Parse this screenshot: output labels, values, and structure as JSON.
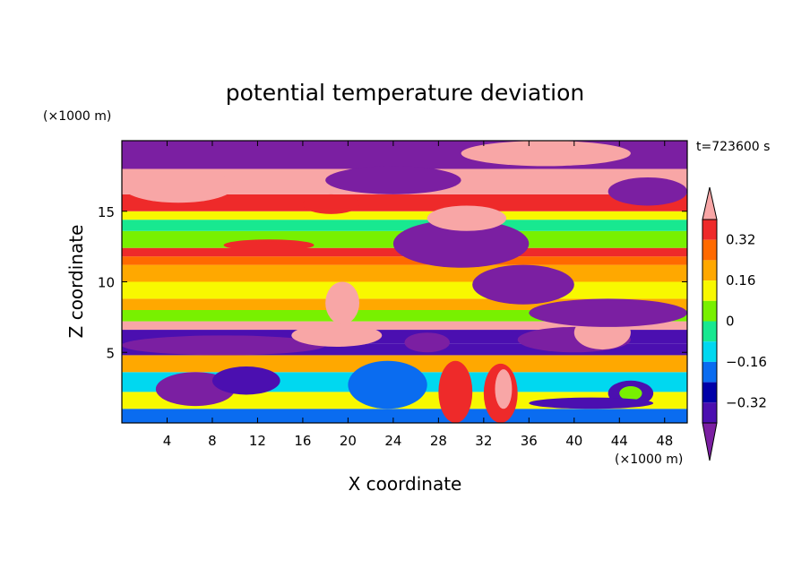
{
  "chart_data": {
    "type": "heatmap",
    "title": "potential temperature deviation",
    "xlabel": "X coordinate",
    "ylabel": "Z coordinate",
    "x_unit": "(×1000 m)",
    "y_unit": "(×1000 m)",
    "time_label": "t=723600 s",
    "xlim": [
      0,
      50
    ],
    "ylim": [
      0,
      20
    ],
    "xticks": [
      4,
      8,
      12,
      16,
      20,
      24,
      28,
      32,
      36,
      40,
      44,
      48
    ],
    "yticks": [
      5,
      10,
      15
    ],
    "colorbar": {
      "levels": [
        -0.48,
        -0.4,
        -0.32,
        -0.24,
        -0.16,
        -0.08,
        0,
        0.08,
        0.16,
        0.24,
        0.32,
        0.4
      ],
      "labels": [
        "0.32",
        "0.16",
        "0",
        "−0.16",
        "−0.32"
      ],
      "label_values": [
        0.32,
        0.16,
        0,
        -0.16,
        -0.32
      ],
      "colors": [
        "#7b1fa2",
        "#4b0fb0",
        "#0000a8",
        "#0a6cf0",
        "#00d8f0",
        "#18e890",
        "#78f000",
        "#f8f800",
        "#ffa800",
        "#ff6a00",
        "#ee2a2a",
        "#f8a6a6"
      ],
      "extend": "both"
    },
    "bands": [
      {
        "z": [
          0.0,
          1.0
        ],
        "value": -0.2
      },
      {
        "z": [
          1.0,
          2.2
        ],
        "value": 0.12
      },
      {
        "z": [
          2.2,
          3.6
        ],
        "value": -0.1
      },
      {
        "z": [
          3.6,
          4.8
        ],
        "value": 0.2
      },
      {
        "z": [
          4.8,
          5.6
        ],
        "value": -0.36
      },
      {
        "z": [
          5.6,
          6.6
        ],
        "value": -0.4
      },
      {
        "z": [
          6.6,
          7.2
        ],
        "value": 0.45
      },
      {
        "z": [
          7.2,
          8.0
        ],
        "value": 0.06
      },
      {
        "z": [
          8.0,
          8.8
        ],
        "value": 0.2
      },
      {
        "z": [
          8.8,
          10.0
        ],
        "value": 0.12
      },
      {
        "z": [
          10.0,
          11.2
        ],
        "value": 0.2
      },
      {
        "z": [
          11.2,
          11.8
        ],
        "value": 0.26
      },
      {
        "z": [
          11.8,
          12.4
        ],
        "value": 0.36
      },
      {
        "z": [
          12.4,
          13.6
        ],
        "value": 0.04
      },
      {
        "z": [
          13.6,
          14.4
        ],
        "value": -0.06
      },
      {
        "z": [
          14.4,
          15.0
        ],
        "value": 0.1
      },
      {
        "z": [
          15.0,
          16.2
        ],
        "value": 0.34
      },
      {
        "z": [
          16.2,
          18.0
        ],
        "value": 0.45
      },
      {
        "z": [
          18.0,
          20.0
        ],
        "value": -0.45
      }
    ],
    "features": [
      {
        "x": [
          0,
          18
        ],
        "z": [
          4.8,
          6.2
        ],
        "value": -0.45
      },
      {
        "x": [
          3,
          10
        ],
        "z": [
          1.2,
          3.6
        ],
        "value": -0.45
      },
      {
        "x": [
          8,
          14
        ],
        "z": [
          2.0,
          4.0
        ],
        "value": -0.36
      },
      {
        "x": [
          15,
          23
        ],
        "z": [
          5.4,
          7.0
        ],
        "value": 0.45
      },
      {
        "x": [
          18,
          21
        ],
        "z": [
          7.0,
          10.0
        ],
        "value": 0.45
      },
      {
        "x": [
          20,
          27
        ],
        "z": [
          1.0,
          4.4
        ],
        "value": -0.2
      },
      {
        "x": [
          25,
          29
        ],
        "z": [
          5.0,
          6.4
        ],
        "value": -0.45
      },
      {
        "x": [
          28,
          31
        ],
        "z": [
          0.0,
          4.4
        ],
        "value": 0.36
      },
      {
        "x": [
          32,
          35
        ],
        "z": [
          0.0,
          4.2
        ],
        "value": 0.36
      },
      {
        "x": [
          33,
          34.5
        ],
        "z": [
          1.0,
          3.8
        ],
        "value": 0.45
      },
      {
        "x": [
          35,
          45
        ],
        "z": [
          5.0,
          6.8
        ],
        "value": -0.45
      },
      {
        "x": [
          40,
          45
        ],
        "z": [
          5.2,
          7.6
        ],
        "value": 0.45
      },
      {
        "x": [
          43,
          47
        ],
        "z": [
          1.2,
          3.0
        ],
        "value": -0.36
      },
      {
        "x": [
          44,
          46
        ],
        "z": [
          1.6,
          2.6
        ],
        "value": 0.0
      },
      {
        "x": [
          36,
          47
        ],
        "z": [
          1.0,
          1.8
        ],
        "value": -0.4
      },
      {
        "x": [
          24,
          36
        ],
        "z": [
          11.0,
          14.4
        ],
        "value": -0.45
      },
      {
        "x": [
          31,
          40
        ],
        "z": [
          8.4,
          11.2
        ],
        "value": -0.45
      },
      {
        "x": [
          27,
          34
        ],
        "z": [
          13.6,
          15.4
        ],
        "value": 0.45
      },
      {
        "x": [
          36,
          50
        ],
        "z": [
          6.8,
          8.8
        ],
        "value": -0.45
      },
      {
        "x": [
          43,
          50
        ],
        "z": [
          15.4,
          17.4
        ],
        "value": -0.45
      },
      {
        "x": [
          0,
          10
        ],
        "z": [
          15.6,
          18.0
        ],
        "value": 0.45
      },
      {
        "x": [
          18,
          30
        ],
        "z": [
          16.2,
          18.2
        ],
        "value": -0.45
      },
      {
        "x": [
          30,
          45
        ],
        "z": [
          18.2,
          20.0
        ],
        "value": 0.45
      },
      {
        "x": [
          9,
          17
        ],
        "z": [
          12.2,
          13.0
        ],
        "value": 0.36
      },
      {
        "x": [
          16,
          21
        ],
        "z": [
          14.8,
          16.2
        ],
        "value": 0.36
      }
    ]
  }
}
